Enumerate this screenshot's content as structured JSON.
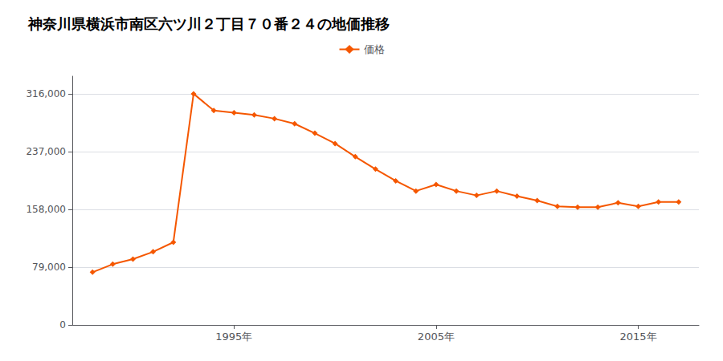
{
  "chart_data": {
    "type": "line",
    "title": "神奈川県横浜市南区六ツ川２丁目７０番２４の地価推移",
    "x": [
      1988,
      1989,
      1990,
      1991,
      1992,
      1993,
      1994,
      1995,
      1996,
      1997,
      1998,
      1999,
      2000,
      2001,
      2002,
      2003,
      2004,
      2005,
      2006,
      2007,
      2008,
      2009,
      2010,
      2011,
      2012,
      2013,
      2014,
      2015,
      2016,
      2017
    ],
    "series": [
      {
        "name": "価格",
        "color": "#f55700",
        "marker": "diamond",
        "values": [
          72000,
          83000,
          90000,
          100000,
          113000,
          316000,
          293000,
          290000,
          287000,
          282000,
          275000,
          262000,
          248000,
          230000,
          213000,
          197000,
          183000,
          192000,
          183000,
          177000,
          183000,
          176000,
          170000,
          162000,
          161000,
          161000,
          167000,
          162000,
          168000,
          168000
        ]
      }
    ],
    "xlim": [
      1987,
      2018
    ],
    "xticks": [
      {
        "value": 1995,
        "label": "1995年"
      },
      {
        "value": 2005,
        "label": "2005年"
      },
      {
        "value": 2015,
        "label": "2015年"
      }
    ],
    "ylim": [
      0,
      340000
    ],
    "yticks": [
      0,
      {
        "value": 79000,
        "label": "79,000"
      },
      {
        "value": 158000,
        "label": "158,000"
      },
      {
        "value": 237000,
        "label": "237,000"
      },
      {
        "value": 316000,
        "label": "316,000"
      }
    ],
    "grid": true,
    "legend": "top"
  }
}
